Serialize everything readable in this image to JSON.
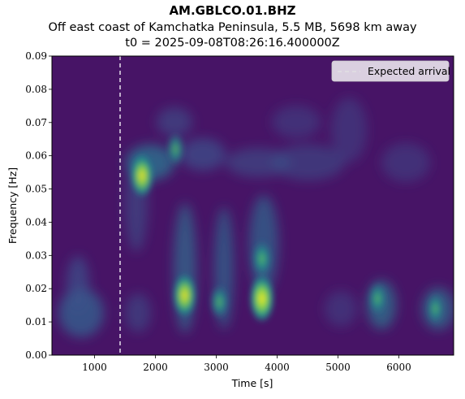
{
  "header": {
    "title": "AM.GBLCO.01.BHZ",
    "subtitle": "Off east coast of Kamchatka Peninsula, 5.5 MB, 5698 km away",
    "t0_line": "t0 = 2025-09-08T08:26:16.400000Z"
  },
  "chart_data": {
    "type": "heatmap",
    "colormap": "viridis",
    "xlabel": "Time [s]",
    "ylabel": "Frequency [Hz]",
    "xlim": [
      300,
      6900
    ],
    "ylim": [
      0.0,
      0.09
    ],
    "x_ticks": [
      1000,
      2000,
      3000,
      4000,
      5000,
      6000
    ],
    "y_ticks": [
      0.0,
      0.01,
      0.02,
      0.03,
      0.04,
      0.05,
      0.06,
      0.07,
      0.08,
      0.09
    ],
    "x_tick_labels": [
      "1000",
      "2000",
      "3000",
      "4000",
      "5000",
      "6000"
    ],
    "y_tick_labels": [
      "0.00",
      "0.01",
      "0.02",
      "0.03",
      "0.04",
      "0.05",
      "0.06",
      "0.07",
      "0.08",
      "0.09"
    ],
    "expected_arrival": {
      "time": 1420,
      "label": "Expected arrival",
      "color": "#ffffff"
    },
    "legend": {
      "position": "top-right",
      "entries": [
        "Expected arrival"
      ]
    },
    "grid": false,
    "energy_regions": [
      {
        "time": 1780,
        "freq": 0.054,
        "intensity": 0.85
      },
      {
        "time": 2330,
        "freq": 0.062,
        "intensity": 0.55
      },
      {
        "time": 2480,
        "freq": 0.018,
        "intensity": 0.85
      },
      {
        "time": 3050,
        "freq": 0.016,
        "intensity": 0.55
      },
      {
        "time": 3750,
        "freq": 0.017,
        "intensity": 1.0
      },
      {
        "time": 3750,
        "freq": 0.029,
        "intensity": 0.65
      },
      {
        "time": 5650,
        "freq": 0.017,
        "intensity": 0.5
      },
      {
        "time": 6600,
        "freq": 0.014,
        "intensity": 0.45
      }
    ]
  }
}
